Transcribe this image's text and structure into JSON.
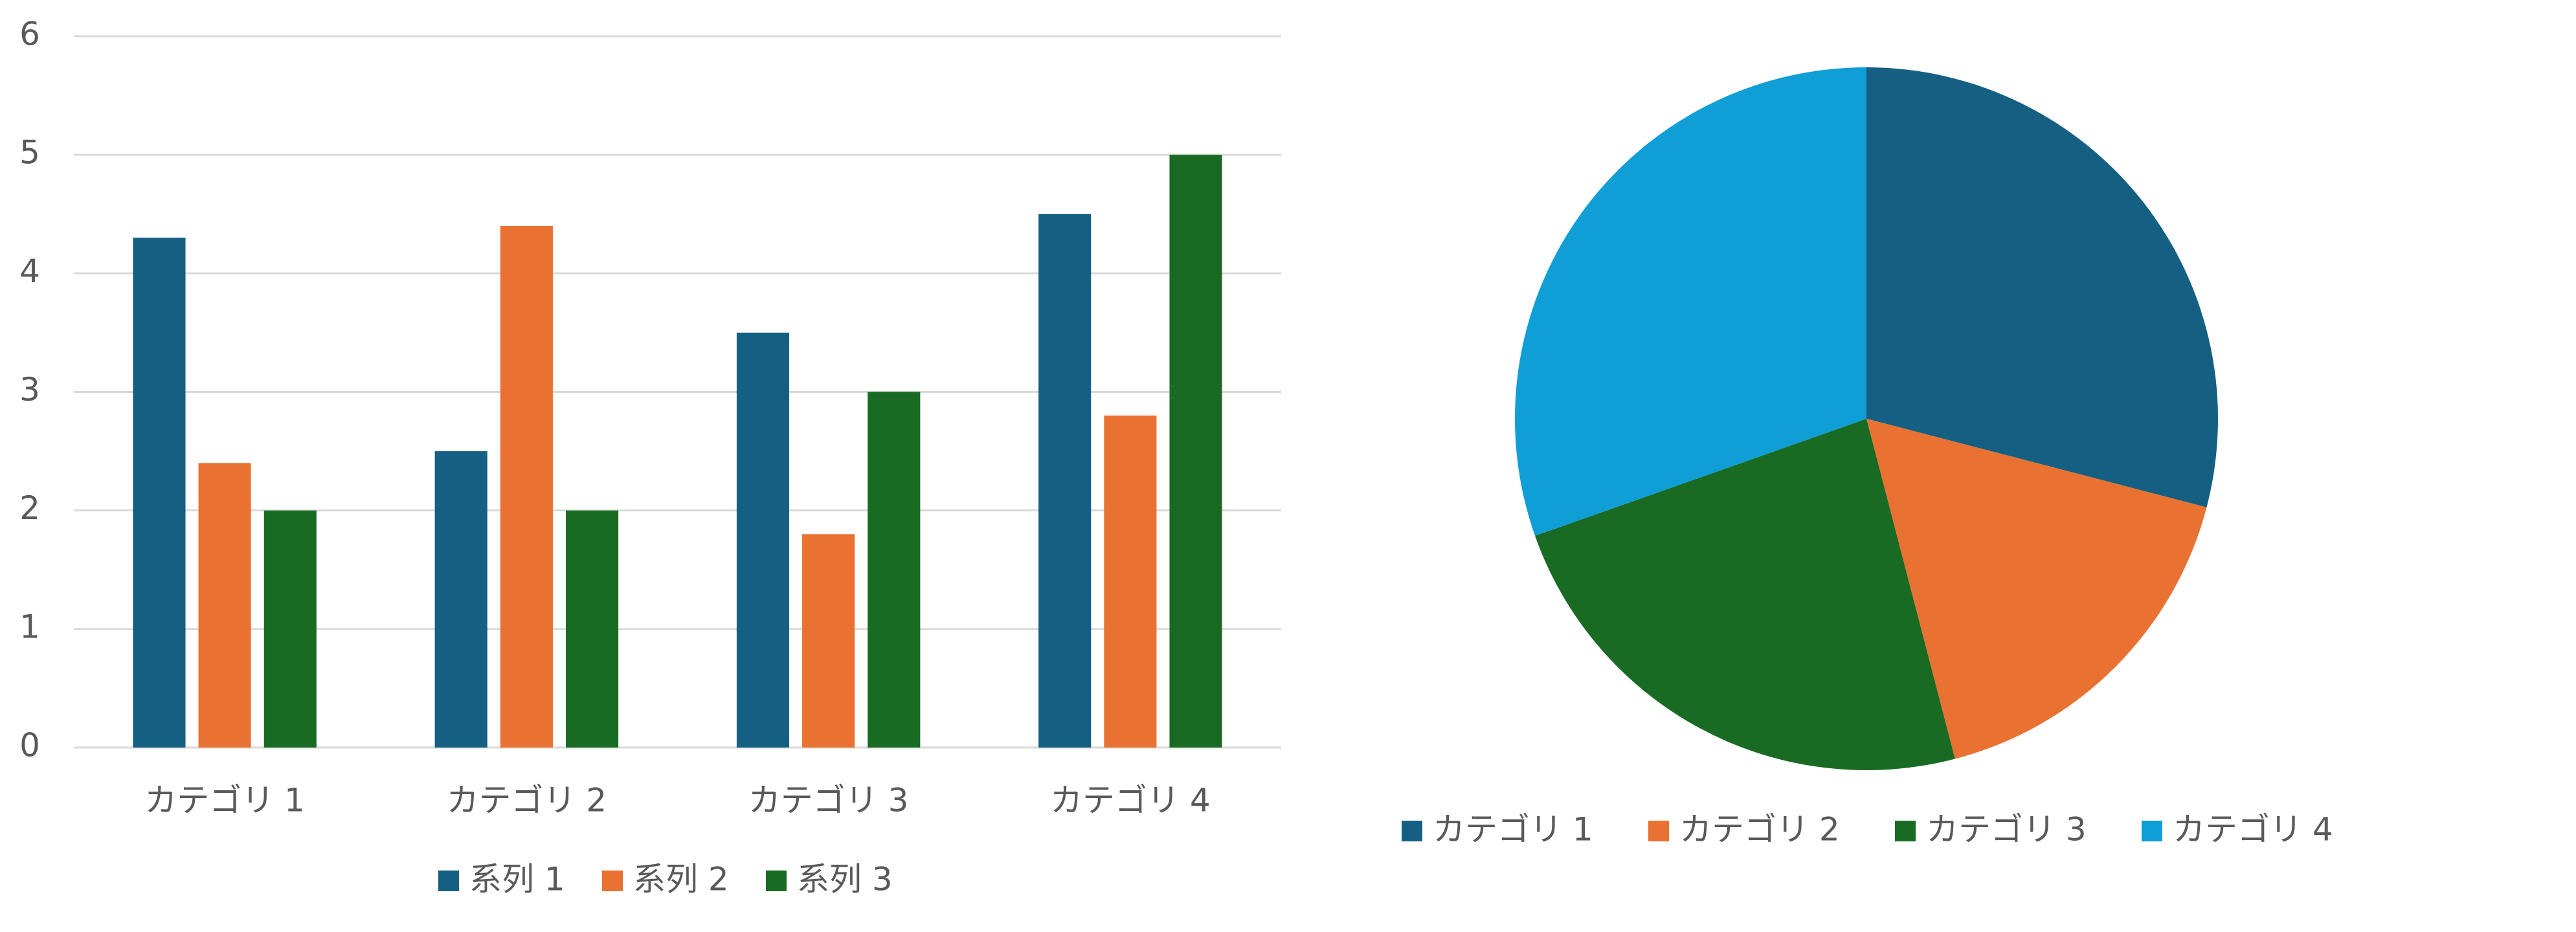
{
  "chart_data": [
    {
      "type": "bar",
      "categories": [
        "カテゴリ 1",
        "カテゴリ 2",
        "カテゴリ 3",
        "カテゴリ 4"
      ],
      "series": [
        {
          "name": "系列 1",
          "color": "#156082",
          "values": [
            4.3,
            2.5,
            3.5,
            4.5
          ]
        },
        {
          "name": "系列 2",
          "color": "#e97132",
          "values": [
            2.4,
            4.4,
            1.8,
            2.8
          ]
        },
        {
          "name": "系列 3",
          "color": "#196b24",
          "values": [
            2,
            2,
            3,
            5
          ]
        }
      ],
      "ylim": [
        0,
        6
      ],
      "yticks": [
        0,
        1,
        2,
        3,
        4,
        5,
        6
      ],
      "grid": true,
      "legend": "bottom"
    },
    {
      "type": "pie",
      "categories": [
        "カテゴリ 1",
        "カテゴリ 2",
        "カテゴリ 3",
        "カテゴリ 4"
      ],
      "values": [
        4.3,
        2.5,
        3.5,
        4.5
      ],
      "colors": [
        "#156082",
        "#e97132",
        "#196b24",
        "#0f9ed5"
      ],
      "legend": "bottom"
    }
  ]
}
